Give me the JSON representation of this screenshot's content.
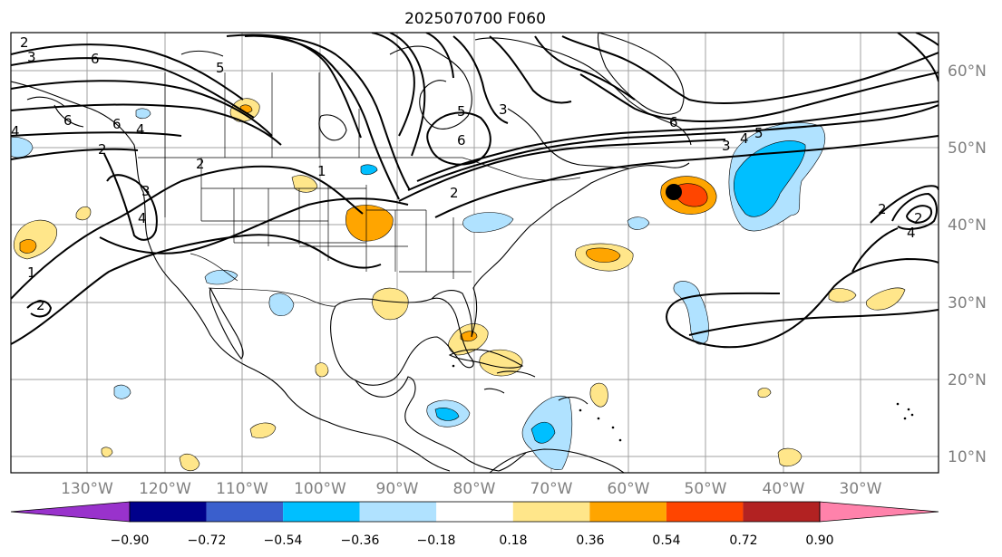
{
  "title": "2025070700 F060",
  "map": {
    "lon_labels": [
      "130°W",
      "120°W",
      "110°W",
      "100°W",
      "90°W",
      "80°W",
      "70°W",
      "60°W",
      "50°W",
      "40°W",
      "30°W"
    ],
    "lat_labels": [
      "60°N",
      "50°N",
      "40°N",
      "30°N",
      "20°N",
      "10°N"
    ],
    "contour_labels": [
      "2",
      "3",
      "6",
      "5",
      "6",
      "4",
      "6",
      "2",
      "4",
      "2",
      "3",
      "4",
      "1",
      "2",
      "1",
      "2",
      "5",
      "3",
      "6",
      "3",
      "4",
      "5",
      "6",
      "2",
      "4",
      "2"
    ],
    "marker": "black-dot"
  },
  "colorbar": {
    "ticks": [
      "−0.90",
      "−0.72",
      "−0.54",
      "−0.36",
      "−0.18",
      "0.18",
      "0.36",
      "0.54",
      "0.72",
      "0.90"
    ],
    "colors": [
      "#9932cc",
      "#00008b",
      "#3a5fcd",
      "#00bfff",
      "#b0e2ff",
      "#ffffff",
      "#ffe68a",
      "#ffa500",
      "#ff4500",
      "#b22222",
      "#ff82ab"
    ]
  }
}
